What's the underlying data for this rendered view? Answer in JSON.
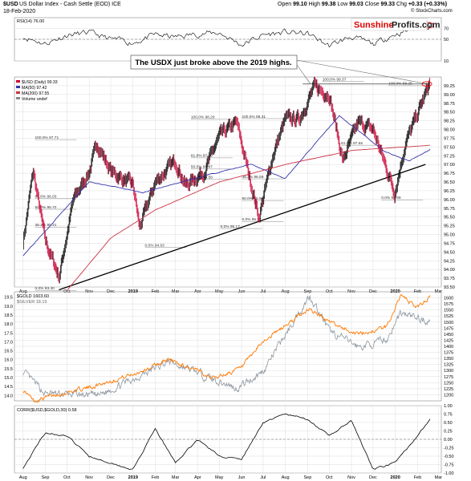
{
  "header": {
    "symbol": "$USD",
    "description": "US Dollar Index - Cash Settle (EOD) ICE",
    "date": "18-Feb-2020",
    "open_label": "Open",
    "open": "99.10",
    "high_label": "High",
    "high": "99.38",
    "low_label": "Low",
    "low": "99.03",
    "close_label": "Close",
    "close": "99.33",
    "chg_label": "Chg",
    "chg": "+0.33 (+0.33%)",
    "credit": "© StockCharts.com"
  },
  "logo": {
    "part1": "Sunshine",
    "part2": "Profits.com"
  },
  "annotation": "The USDX just broke above the 2019 highs.",
  "colors": {
    "price_up": "#000000",
    "price_down": "#cc0033",
    "ma50": "#3333aa",
    "ma200": "#cc3344",
    "gold": "#ff7700",
    "silver": "#8c96a0",
    "logo_red": "#dd0000",
    "grid": "#dddddd"
  },
  "chart_data": [
    {
      "type": "line",
      "title": "RSI(14) 76.00",
      "series": [
        {
          "name": "RSI(14) 76.00",
          "x": [
            "2018-08-01",
            "2018-09-01",
            "2018-10-01",
            "2018-11-01",
            "2018-12-01",
            "2019-01-01",
            "2019-02-01",
            "2019-03-01",
            "2019-04-01",
            "2019-05-01",
            "2019-06-01",
            "2019-07-01",
            "2019-08-01",
            "2019-09-01",
            "2019-10-01",
            "2019-11-01",
            "2019-12-01",
            "2020-01-01",
            "2020-02-18"
          ],
          "values": [
            55,
            42,
            58,
            62,
            50,
            44,
            58,
            54,
            60,
            62,
            40,
            58,
            63,
            60,
            38,
            55,
            40,
            60,
            76
          ]
        }
      ],
      "ylim": [
        10,
        90
      ],
      "y_ticks": [
        10,
        50,
        70
      ],
      "grid": true
    },
    {
      "type": "line",
      "title": "$USD (Daily) 99.33",
      "series": [
        {
          "name": "$USD (Daily) 99.33",
          "x": [
            "2018-08-01",
            "2018-08-15",
            "2018-09-01",
            "2018-09-20",
            "2018-10-10",
            "2018-11-01",
            "2018-11-12",
            "2018-12-01",
            "2019-01-01",
            "2019-01-10",
            "2019-02-01",
            "2019-03-01",
            "2019-03-15",
            "2019-04-10",
            "2019-05-01",
            "2019-05-25",
            "2019-06-25",
            "2019-07-15",
            "2019-08-01",
            "2019-08-20",
            "2019-09-10",
            "2019-10-01",
            "2019-10-20",
            "2019-11-10",
            "2019-12-01",
            "2019-12-31",
            "2020-01-15",
            "2020-02-18"
          ],
          "values": [
            94.8,
            96.8,
            94.8,
            93.8,
            96.0,
            96.8,
            97.6,
            96.8,
            96.4,
            95.2,
            96.5,
            97.1,
            96.4,
            96.8,
            97.8,
            98.2,
            95.5,
            97.3,
            98.3,
            98.3,
            99.2,
            99.0,
            97.1,
            98.2,
            98.0,
            96.2,
            97.6,
            99.33
          ]
        },
        {
          "name": "MA(50) 97.42",
          "x": [
            "2018-08-01",
            "2018-11-01",
            "2019-01-15",
            "2019-04-15",
            "2019-06-15",
            "2019-08-01",
            "2019-10-15",
            "2019-12-15",
            "2020-01-20",
            "2020-02-18"
          ],
          "values": [
            94.4,
            96.5,
            96.2,
            96.7,
            97.0,
            96.6,
            98.4,
            97.4,
            97.1,
            97.42
          ]
        },
        {
          "name": "MA(200) 97.55",
          "x": [
            "2018-10-01",
            "2018-12-01",
            "2019-02-01",
            "2019-05-01",
            "2019-08-01",
            "2019-11-01",
            "2020-02-18"
          ],
          "values": [
            93.4,
            94.9,
            95.7,
            96.5,
            97.0,
            97.4,
            97.55
          ]
        }
      ],
      "legend": [
        "$USD (Daily) 99.33",
        "MA(50) 97.42",
        "MA(200) 97.55",
        "Volume undef"
      ],
      "fib_labels": [
        "100.0% 97.71",
        "61.8% 96.03",
        "50.0% 95.72",
        "38.2% 95.21",
        "0.0% 93.40",
        "0.0% 94.63",
        "100.0% 98.29",
        "61.8% 97.19",
        "50.0% 96.87",
        "38.2% 96.58",
        "0.0% 95.17",
        "100.0% 98.31",
        "38.2% 96.59",
        "50.0% 95.97",
        "0.0% 95.37",
        "100.0% 99.37",
        "61.8% 97.55",
        "100.0% 99.25",
        "0.0% 95.99"
      ],
      "ylim": [
        93.5,
        99.5
      ],
      "y_ticks": [
        93.5,
        93.75,
        94.0,
        94.25,
        94.5,
        94.75,
        95.0,
        95.25,
        95.5,
        95.75,
        96.0,
        96.25,
        96.5,
        96.75,
        97.0,
        97.25,
        97.5,
        97.75,
        98.0,
        98.25,
        98.5,
        98.75,
        99.0,
        99.25
      ],
      "x_ticks": [
        "Aug",
        "Oct",
        "Nov",
        "Dec",
        "2019",
        "Feb",
        "Mar",
        "Apr",
        "May",
        "Jun",
        "Jul",
        "Aug",
        "Sep",
        "Oct",
        "Nov",
        "Dec",
        "2020",
        "Feb",
        "Mar"
      ],
      "grid": true
    },
    {
      "type": "line",
      "title": "$GOLD 1603.60",
      "series": [
        {
          "name": "$GOLD 1603.60",
          "x": [
            "2018-08-01",
            "2018-08-16",
            "2018-09-15",
            "2018-11-01",
            "2019-01-01",
            "2019-02-20",
            "2019-04-25",
            "2019-06-01",
            "2019-07-01",
            "2019-09-04",
            "2019-10-01",
            "2019-11-12",
            "2019-12-20",
            "2020-01-08",
            "2020-02-01",
            "2020-02-18"
          ],
          "values": [
            1220,
            1175,
            1200,
            1230,
            1285,
            1345,
            1270,
            1310,
            1420,
            1555,
            1500,
            1450,
            1480,
            1610,
            1560,
            1603.6
          ]
        },
        {
          "name": "$SILVER 18.15",
          "x": [
            "2018-08-01",
            "2018-09-01",
            "2018-11-14",
            "2019-02-20",
            "2019-05-25",
            "2019-06-30",
            "2019-09-04",
            "2019-10-01",
            "2019-11-12",
            "2019-12-20",
            "2020-01-08",
            "2020-02-18"
          ],
          "values": [
            15.3,
            14.1,
            14.0,
            15.9,
            14.4,
            15.3,
            19.6,
            17.6,
            16.7,
            17.1,
            18.6,
            18.15
          ]
        }
      ],
      "y_ticks_right": [
        1200,
        1225,
        1250,
        1275,
        1300,
        1325,
        1350,
        1375,
        1400,
        1425,
        1450,
        1475,
        1500,
        1525,
        1550,
        1575,
        1600
      ],
      "y_ticks_left": [
        14.0,
        14.5,
        15.0,
        15.5,
        16.0,
        16.5,
        17.0,
        17.5,
        18.0,
        18.5,
        19.0,
        19.5
      ],
      "grid": true
    },
    {
      "type": "line",
      "title": "CORR($USD,$GOLD,30) 0.58",
      "series": [
        {
          "name": "CORR($USD,$GOLD,30) 0.58",
          "x": [
            "2018-08-01",
            "2018-09-01",
            "2018-10-01",
            "2018-11-01",
            "2018-12-01",
            "2019-01-01",
            "2019-02-01",
            "2019-03-01",
            "2019-04-01",
            "2019-05-01",
            "2019-06-01",
            "2019-07-01",
            "2019-08-01",
            "2019-09-01",
            "2019-10-01",
            "2019-11-01",
            "2019-12-01",
            "2020-01-01",
            "2020-02-18"
          ],
          "values": [
            -0.85,
            0.2,
            0.1,
            -0.5,
            -0.7,
            -0.9,
            0.3,
            -0.7,
            0.0,
            -0.5,
            -0.6,
            0.5,
            0.75,
            0.6,
            0.1,
            0.55,
            -0.9,
            -0.7,
            0.58
          ]
        }
      ],
      "ylim": [
        -1.0,
        1.0
      ],
      "y_ticks": [
        -1.0,
        -0.75,
        -0.5,
        -0.25,
        0.0,
        0.25,
        0.5,
        0.75,
        1.0
      ],
      "x_ticks": [
        "Aug",
        "Sep",
        "Oct",
        "Nov",
        "Dec",
        "2019",
        "Feb",
        "Mar",
        "Apr",
        "May",
        "Jun",
        "Jul",
        "Aug",
        "Sep",
        "Oct",
        "Nov",
        "Dec",
        "2020",
        "Feb",
        "Mar"
      ],
      "grid": true
    }
  ]
}
